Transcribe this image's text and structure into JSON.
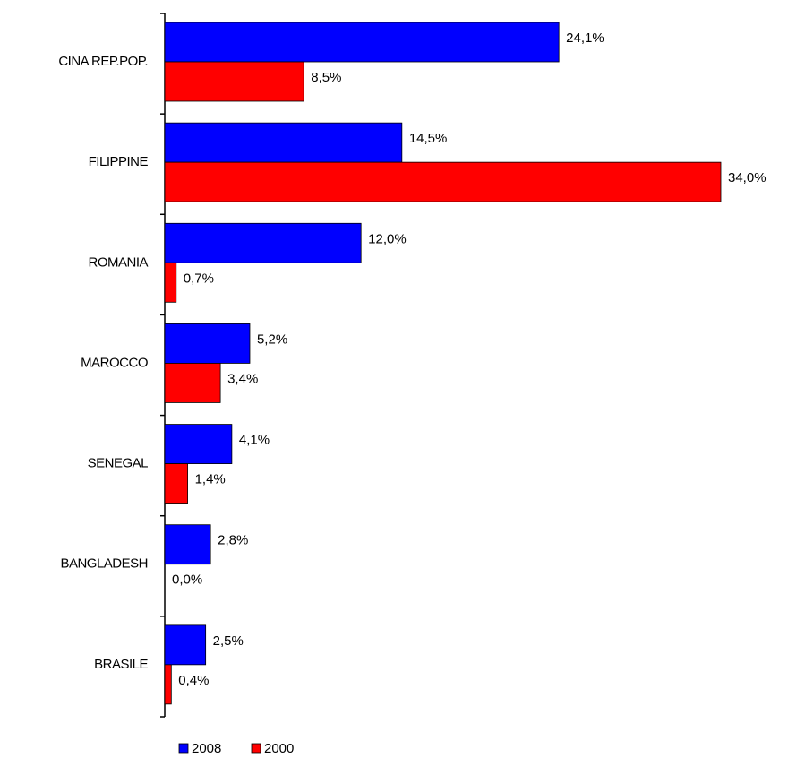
{
  "chart_data": {
    "type": "hbar",
    "categories": [
      "CINA REP.POP.",
      "FILIPPINE",
      "ROMANIA",
      "MAROCCO",
      "SENEGAL",
      "BANGLADESH",
      "BRASILE"
    ],
    "series": [
      {
        "name": "2008",
        "color": "#0000ff",
        "values": [
          24.1,
          14.5,
          12.0,
          5.2,
          4.1,
          2.8,
          2.5
        ],
        "value_labels": [
          "24,1%",
          "14,5%",
          "12,0%",
          "5,2%",
          "4,1%",
          "2,8%",
          "2,5%"
        ]
      },
      {
        "name": "2000",
        "color": "#ff0000",
        "values": [
          8.5,
          34.0,
          0.7,
          3.4,
          1.4,
          0.0,
          0.4
        ],
        "value_labels": [
          "8,5%",
          "34,0%",
          "0,7%",
          "3,4%",
          "1,4%",
          "0,0%",
          "0,4%"
        ]
      }
    ],
    "legend": "bottom"
  }
}
